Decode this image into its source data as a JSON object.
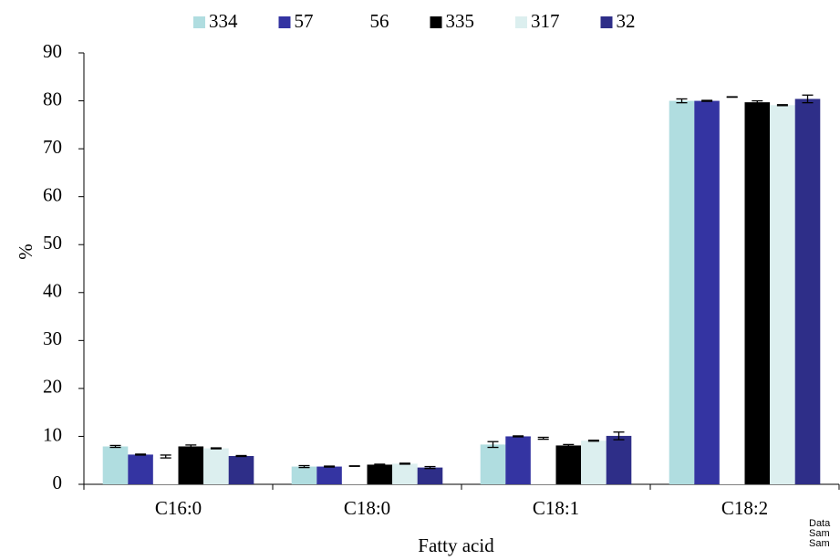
{
  "chart_data": {
    "type": "bar",
    "x_label": "Fatty acid",
    "y_label": "%",
    "categories": [
      "C16:0",
      "C18:0",
      "C18:1",
      "C18:2"
    ],
    "series": [
      {
        "name": "334",
        "color": "#b0dde0",
        "values": [
          7.9,
          3.7,
          8.3,
          80.0
        ],
        "errors": [
          0.2,
          0.2,
          0.6,
          0.4
        ]
      },
      {
        "name": "57",
        "color": "#3434a2",
        "values": [
          6.2,
          3.7,
          10.0,
          80.0
        ],
        "errors": [
          0.1,
          0.1,
          0.1,
          0.1
        ]
      },
      {
        "name": "56",
        "color": "#ffffff",
        "values": [
          5.8,
          3.8,
          9.6,
          80.8
        ],
        "errors": [
          0.3,
          0.05,
          0.2,
          0.05
        ]
      },
      {
        "name": "335",
        "color": "#000000",
        "values": [
          7.9,
          4.1,
          8.1,
          79.7
        ],
        "errors": [
          0.3,
          0.1,
          0.2,
          0.3
        ]
      },
      {
        "name": "317",
        "color": "#dcefef",
        "values": [
          7.5,
          4.3,
          9.1,
          79.1
        ],
        "errors": [
          0.1,
          0.1,
          0.1,
          0.1
        ]
      },
      {
        "name": "32",
        "color": "#2e2e88",
        "values": [
          5.9,
          3.5,
          10.1,
          80.4
        ],
        "errors": [
          0.1,
          0.2,
          0.8,
          0.8
        ]
      }
    ],
    "ylim": [
      0,
      90
    ],
    "yticks": [
      0,
      10,
      20,
      30,
      40,
      50,
      60,
      70,
      80,
      90
    ],
    "grid": false,
    "legend": "top",
    "annotations": [
      "Data",
      "Sam",
      "Sam"
    ]
  }
}
